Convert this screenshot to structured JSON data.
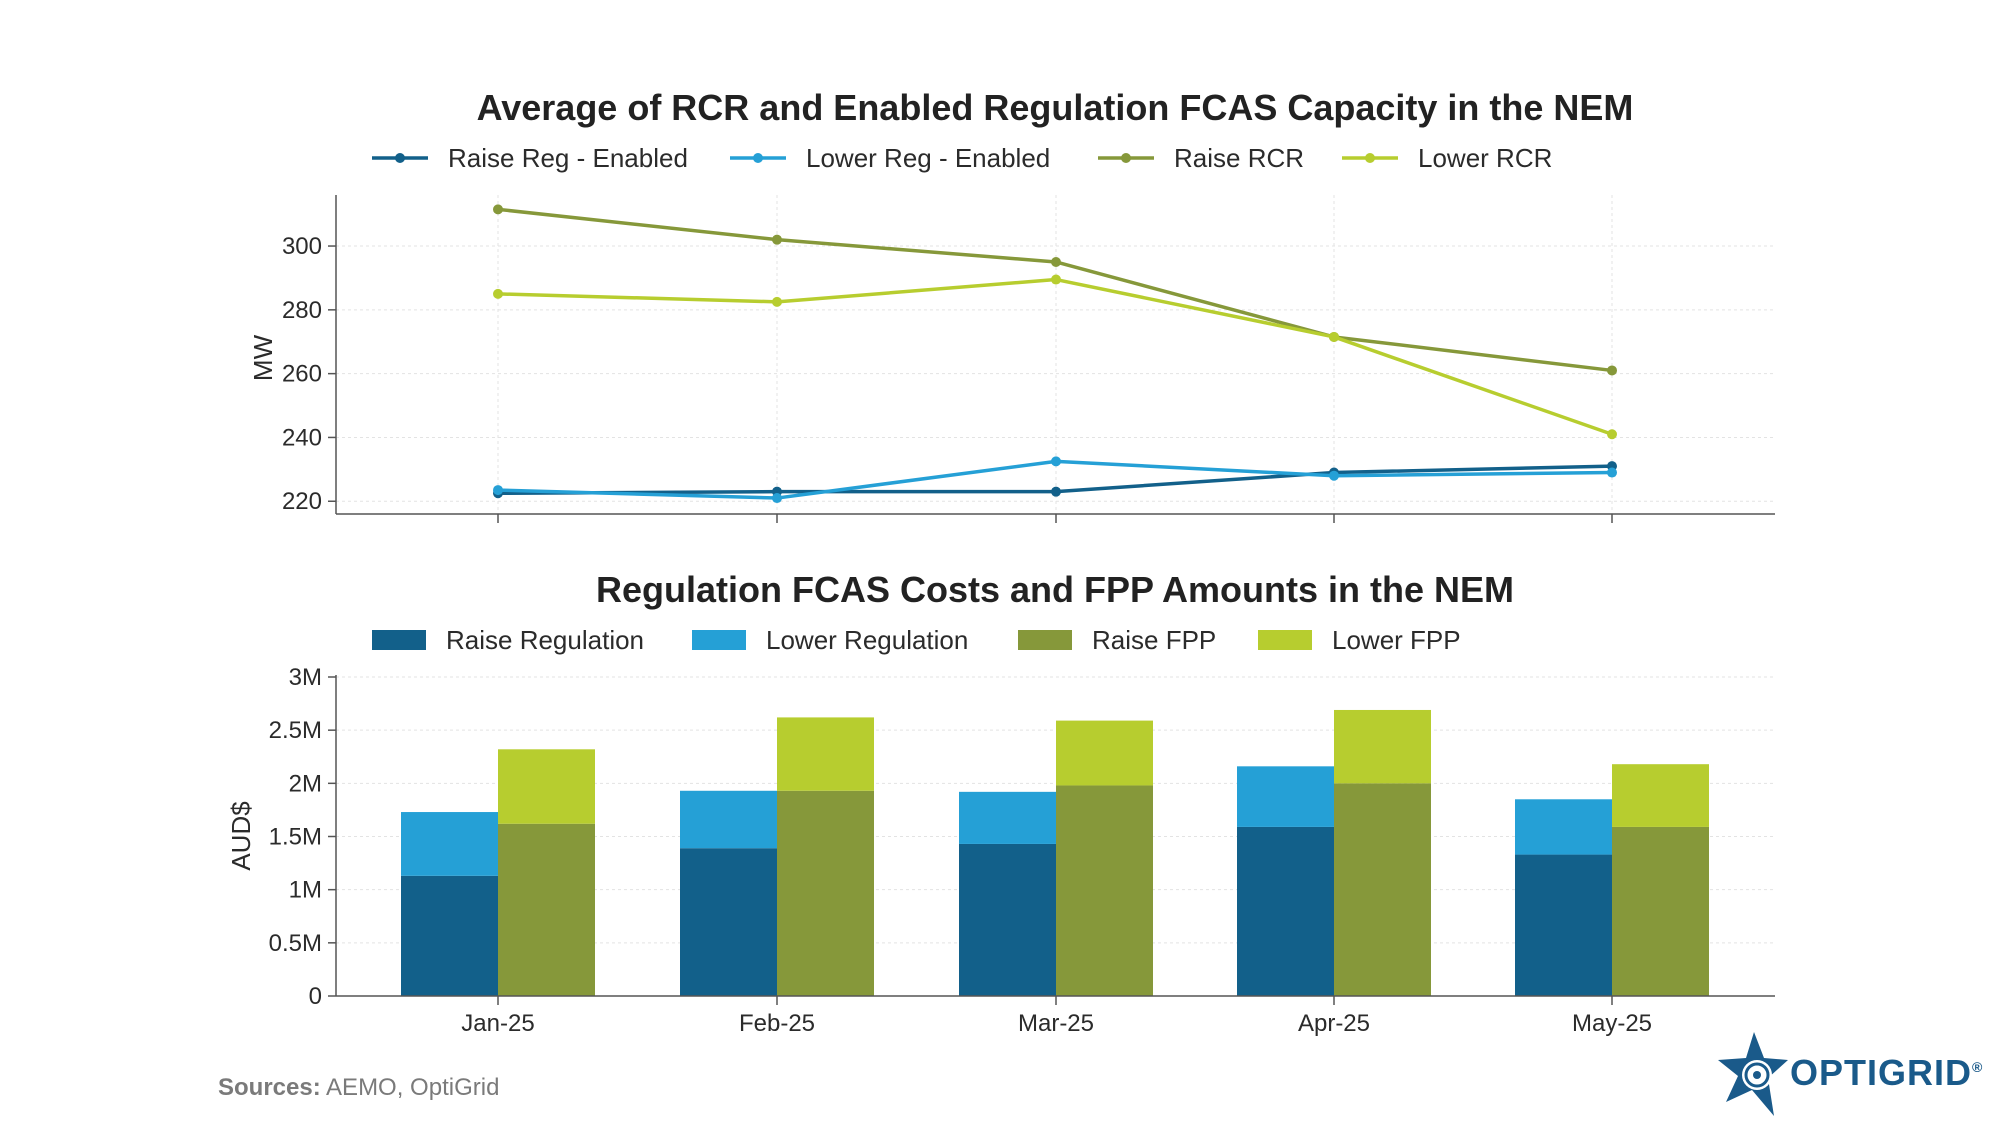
{
  "chart_data": [
    {
      "type": "line",
      "title": "Average of RCR and Enabled Regulation FCAS Capacity in the NEM",
      "ylabel": "MW",
      "xlabel": "",
      "categories": [
        "Jan-25",
        "Feb-25",
        "Mar-25",
        "Apr-25",
        "May-25"
      ],
      "ylim": [
        216,
        316
      ],
      "yticks": [
        220,
        240,
        260,
        280,
        300
      ],
      "ytick_labels": [
        "220",
        "240",
        "260",
        "280",
        "300"
      ],
      "grid": true,
      "legend_position": "top",
      "series": [
        {
          "name": "Raise Reg - Enabled",
          "color": "#12608a",
          "values": [
            222.5,
            223,
            223,
            229,
            231
          ]
        },
        {
          "name": "Lower Reg - Enabled",
          "color": "#25a0d6",
          "values": [
            223.5,
            221,
            232.5,
            228,
            229
          ]
        },
        {
          "name": "Raise RCR",
          "color": "#86983a",
          "values": [
            311.5,
            302,
            295,
            271.5,
            261
          ]
        },
        {
          "name": "Lower RCR",
          "color": "#b7cd2f",
          "values": [
            285,
            282.5,
            289.5,
            271.5,
            241
          ]
        }
      ]
    },
    {
      "type": "bar",
      "title": "Regulation FCAS Costs and FPP Amounts in the NEM",
      "ylabel": "AUD$",
      "xlabel": "",
      "categories": [
        "Jan-25",
        "Feb-25",
        "Mar-25",
        "Apr-25",
        "May-25"
      ],
      "ylim": [
        0,
        3000000
      ],
      "yticks": [
        0,
        500000,
        1000000,
        1500000,
        2000000,
        2500000,
        3000000
      ],
      "ytick_labels": [
        "0",
        "0.5M",
        "1M",
        "1.5M",
        "2M",
        "2.5M",
        "3M"
      ],
      "grid": true,
      "legend_position": "top",
      "stacked_groups": [
        {
          "stack": "Regulation",
          "series": [
            {
              "name": "Raise Regulation",
              "color": "#12608a",
              "values": [
                1130000,
                1390000,
                1430000,
                1590000,
                1330000
              ]
            },
            {
              "name": "Lower Regulation",
              "color": "#25a0d6",
              "values": [
                600000,
                540000,
                490000,
                570000,
                520000
              ]
            }
          ]
        },
        {
          "stack": "FPP",
          "series": [
            {
              "name": "Raise FPP",
              "color": "#86983a",
              "values": [
                1620000,
                1930000,
                1980000,
                2000000,
                1590000
              ]
            },
            {
              "name": "Lower FPP",
              "color": "#b7cd2f",
              "values": [
                700000,
                690000,
                610000,
                690000,
                590000
              ]
            }
          ]
        }
      ]
    }
  ],
  "footer": {
    "sources_label": "Sources:",
    "sources_text": " AEMO, OptiGrid"
  },
  "logo": {
    "text": "OPTIGRID",
    "registered": "®",
    "color": "#1a5a8a"
  }
}
